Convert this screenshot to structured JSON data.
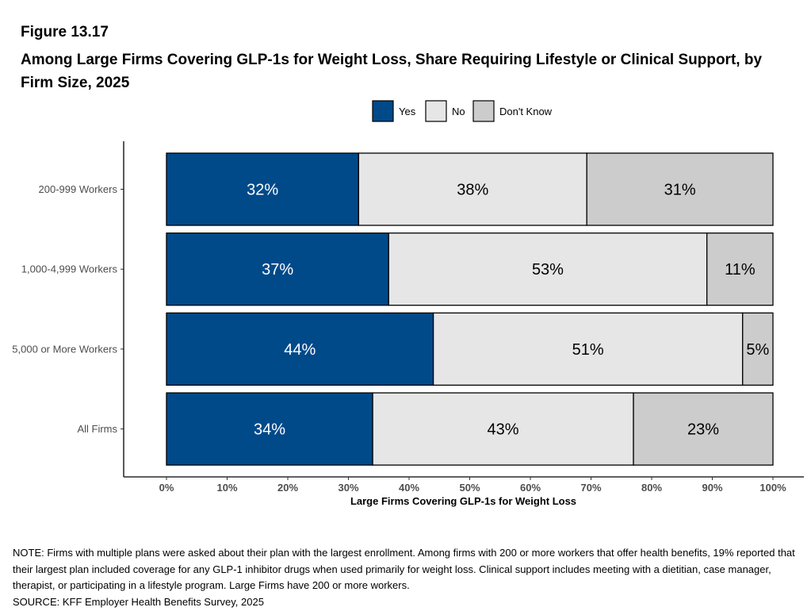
{
  "figure": {
    "label": "Figure 13.17",
    "title": "Among Large Firms Covering GLP-1s for Weight Loss, Share Requiring Lifestyle or Clinical Support, by Firm Size, 2025"
  },
  "chart_data": {
    "type": "bar",
    "orientation": "horizontal",
    "stacked": true,
    "categories": [
      "200-999 Workers",
      "1,000-4,999 Workers",
      "5,000 or More Workers",
      "All Firms"
    ],
    "series": [
      {
        "name": "Yes",
        "values": [
          32,
          37,
          44,
          34
        ],
        "labels": [
          "32%",
          "37%",
          "44%",
          "34%"
        ],
        "color": "#004a8a",
        "label_color": "#ffffff"
      },
      {
        "name": "No",
        "values": [
          38,
          53,
          51,
          43
        ],
        "labels": [
          "38%",
          "53%",
          "51%",
          "43%"
        ],
        "color": "#e6e6e6",
        "label_color": "#000000"
      },
      {
        "name": "Don't Know",
        "values": [
          31,
          11,
          5,
          23
        ],
        "labels": [
          "31%",
          "11%",
          "5%",
          "23%"
        ],
        "color": "#cccccc",
        "label_color": "#000000"
      }
    ],
    "xlabel": "Large Firms Covering GLP-1s for Weight Loss",
    "ylabel": "",
    "xlim": [
      0,
      100
    ],
    "x_ticks": [
      0,
      10,
      20,
      30,
      40,
      50,
      60,
      70,
      80,
      90,
      100
    ],
    "x_tick_labels": [
      "0%",
      "10%",
      "20%",
      "30%",
      "40%",
      "50%",
      "60%",
      "70%",
      "80%",
      "90%",
      "100%"
    ],
    "grid": false,
    "legend_position": "top-center"
  },
  "notes": {
    "note": "NOTE: Firms with multiple plans were asked about their plan with the largest enrollment.  Among firms with 200 or more workers that offer health benefits, 19% reported that their largest plan included coverage for any GLP-1 inhibitor drugs when used primarily for weight loss. Clinical support includes meeting with a dietitian, case manager, therapist, or participating in a lifestyle program. Large Firms have 200 or more workers.",
    "source": "SOURCE: KFF Employer Health Benefits Survey, 2025"
  }
}
